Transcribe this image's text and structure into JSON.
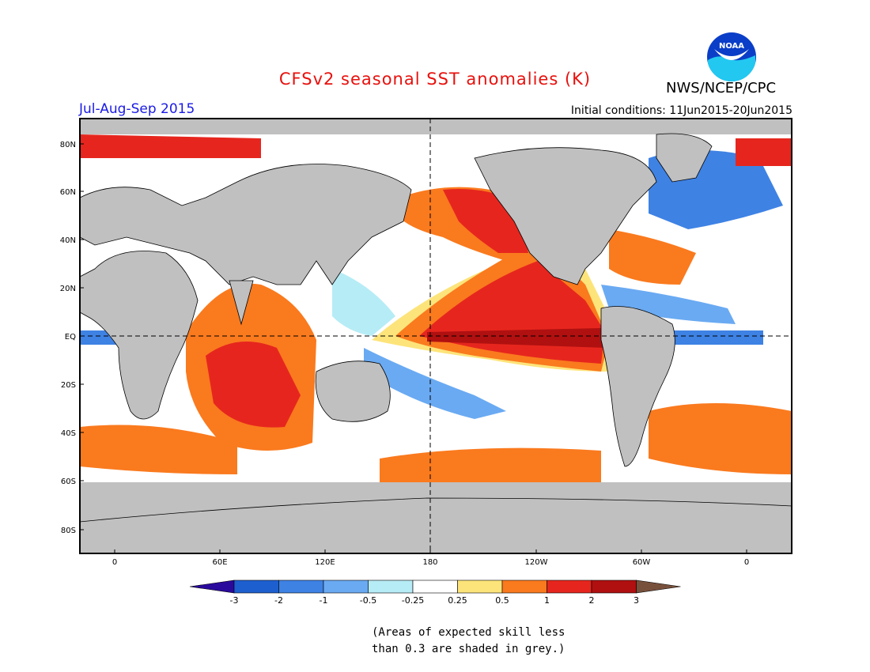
{
  "header": {
    "title": "CFSv2 seasonal SST anomalies (K)",
    "agency": "NWS/NCEP/CPC",
    "season": "Jul-Aug-Sep 2015",
    "initial_conditions": "Initial conditions: 11Jun2015-20Jun2015"
  },
  "logo": {
    "text": "NOAA",
    "icon": "noaa-logo"
  },
  "map": {
    "lat_labels": [
      "80N",
      "60N",
      "40N",
      "20N",
      "EQ",
      "20S",
      "40S",
      "60S",
      "80S"
    ],
    "lon_labels": [
      "0",
      "60E",
      "120E",
      "180",
      "120W",
      "60W",
      "0"
    ],
    "land_color": "#c0c0c0",
    "ocean_color": "#ffffff"
  },
  "colorbar": {
    "labels": [
      "-3",
      "-2",
      "-1",
      "-0.5",
      "-0.25",
      "0.25",
      "0.5",
      "1",
      "2",
      "3"
    ],
    "colors": [
      "#2a0a9c",
      "#1e5fd0",
      "#3e82e4",
      "#6aaaf2",
      "#b6ecf6",
      "#ffffff",
      "#fde47a",
      "#fa7a1e",
      "#e6261e",
      "#b01010",
      "#78513c"
    ]
  },
  "note": {
    "line1": "(Areas of expected skill less",
    "line2": "than 0.3 are shaded in grey.)"
  }
}
